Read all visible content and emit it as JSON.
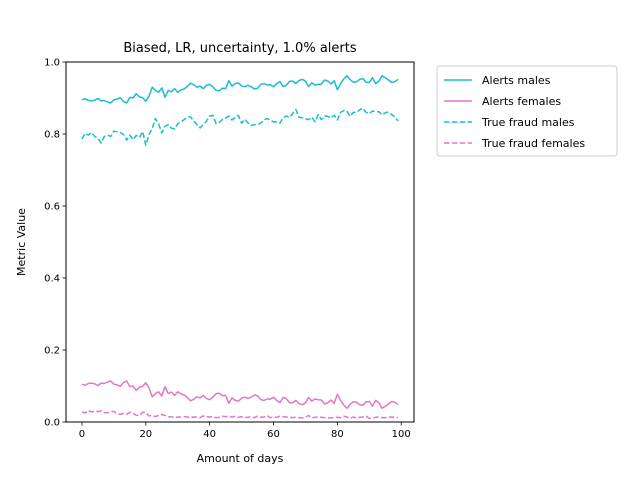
{
  "chart_data": {
    "type": "line",
    "title": "Biased, LR, uncertainty, 1.0% alerts",
    "xlabel": "Amount of days",
    "ylabel": "Metric Value",
    "xlim": [
      -5,
      104
    ],
    "ylim": [
      0.0,
      1.0
    ],
    "xticks": [
      0,
      20,
      40,
      60,
      80,
      100
    ],
    "yticks": [
      0.0,
      0.2,
      0.4,
      0.6,
      0.8,
      1.0
    ],
    "xtick_labels": [
      "0",
      "20",
      "40",
      "60",
      "80",
      "100"
    ],
    "ytick_labels": [
      "0.0",
      "0.2",
      "0.4",
      "0.6",
      "0.8",
      "1.0"
    ],
    "grid": false,
    "legend_position": "outside-top-right",
    "x": [
      0,
      1,
      2,
      3,
      4,
      5,
      6,
      7,
      8,
      9,
      10,
      11,
      12,
      13,
      14,
      15,
      16,
      17,
      18,
      19,
      20,
      21,
      22,
      23,
      24,
      25,
      26,
      27,
      28,
      29,
      30,
      31,
      32,
      33,
      34,
      35,
      36,
      37,
      38,
      39,
      40,
      41,
      42,
      43,
      44,
      45,
      46,
      47,
      48,
      49,
      50,
      51,
      52,
      53,
      54,
      55,
      56,
      57,
      58,
      59,
      60,
      61,
      62,
      63,
      64,
      65,
      66,
      67,
      68,
      69,
      70,
      71,
      72,
      73,
      74,
      75,
      76,
      77,
      78,
      79,
      80,
      81,
      82,
      83,
      84,
      85,
      86,
      87,
      88,
      89,
      90,
      91,
      92,
      93,
      94,
      95,
      96,
      97,
      98,
      99
    ],
    "series": [
      {
        "name": "Alerts males",
        "color": "#17becf",
        "dash": "solid",
        "values": [
          0.895,
          0.898,
          0.893,
          0.892,
          0.894,
          0.899,
          0.892,
          0.893,
          0.889,
          0.886,
          0.895,
          0.897,
          0.901,
          0.89,
          0.886,
          0.902,
          0.9,
          0.912,
          0.903,
          0.901,
          0.891,
          0.905,
          0.93,
          0.921,
          0.916,
          0.928,
          0.902,
          0.921,
          0.917,
          0.926,
          0.916,
          0.922,
          0.925,
          0.932,
          0.941,
          0.937,
          0.93,
          0.933,
          0.926,
          0.935,
          0.938,
          0.931,
          0.921,
          0.92,
          0.927,
          0.926,
          0.948,
          0.933,
          0.94,
          0.942,
          0.934,
          0.931,
          0.935,
          0.931,
          0.925,
          0.927,
          0.938,
          0.94,
          0.936,
          0.937,
          0.931,
          0.94,
          0.946,
          0.932,
          0.935,
          0.946,
          0.947,
          0.94,
          0.949,
          0.952,
          0.947,
          0.932,
          0.942,
          0.936,
          0.938,
          0.939,
          0.95,
          0.947,
          0.939,
          0.948,
          0.923,
          0.94,
          0.953,
          0.962,
          0.951,
          0.944,
          0.945,
          0.952,
          0.954,
          0.944,
          0.943,
          0.956,
          0.94,
          0.947,
          0.962,
          0.956,
          0.95,
          0.943,
          0.945,
          0.952
        ]
      },
      {
        "name": "Alerts females",
        "color": "#e377c2",
        "dash": "solid",
        "values": [
          0.105,
          0.102,
          0.107,
          0.108,
          0.106,
          0.101,
          0.108,
          0.107,
          0.111,
          0.114,
          0.105,
          0.103,
          0.099,
          0.11,
          0.114,
          0.098,
          0.1,
          0.088,
          0.097,
          0.099,
          0.109,
          0.095,
          0.07,
          0.079,
          0.084,
          0.072,
          0.098,
          0.079,
          0.083,
          0.074,
          0.084,
          0.078,
          0.075,
          0.068,
          0.059,
          0.063,
          0.07,
          0.067,
          0.074,
          0.065,
          0.062,
          0.069,
          0.079,
          0.08,
          0.073,
          0.074,
          0.052,
          0.067,
          0.06,
          0.058,
          0.066,
          0.069,
          0.065,
          0.069,
          0.075,
          0.073,
          0.062,
          0.06,
          0.064,
          0.063,
          0.069,
          0.06,
          0.054,
          0.068,
          0.065,
          0.054,
          0.053,
          0.06,
          0.051,
          0.048,
          0.053,
          0.068,
          0.058,
          0.064,
          0.062,
          0.061,
          0.05,
          0.053,
          0.061,
          0.052,
          0.077,
          0.06,
          0.047,
          0.038,
          0.049,
          0.056,
          0.055,
          0.048,
          0.046,
          0.056,
          0.057,
          0.044,
          0.06,
          0.053,
          0.038,
          0.044,
          0.05,
          0.057,
          0.055,
          0.048
        ]
      },
      {
        "name": "True fraud males",
        "color": "#17becf",
        "dash": "dashed",
        "values": [
          0.786,
          0.802,
          0.797,
          0.804,
          0.793,
          0.788,
          0.775,
          0.793,
          0.797,
          0.793,
          0.808,
          0.806,
          0.804,
          0.799,
          0.783,
          0.797,
          0.784,
          0.796,
          0.79,
          0.807,
          0.769,
          0.798,
          0.815,
          0.843,
          0.828,
          0.803,
          0.821,
          0.826,
          0.816,
          0.814,
          0.828,
          0.833,
          0.84,
          0.846,
          0.848,
          0.836,
          0.826,
          0.817,
          0.826,
          0.836,
          0.85,
          0.852,
          0.829,
          0.832,
          0.84,
          0.844,
          0.85,
          0.839,
          0.846,
          0.852,
          0.83,
          0.841,
          0.831,
          0.823,
          0.826,
          0.826,
          0.83,
          0.838,
          0.843,
          0.838,
          0.834,
          0.833,
          0.83,
          0.845,
          0.85,
          0.846,
          0.857,
          0.868,
          0.846,
          0.845,
          0.842,
          0.84,
          0.847,
          0.834,
          0.854,
          0.84,
          0.85,
          0.849,
          0.845,
          0.852,
          0.839,
          0.86,
          0.865,
          0.863,
          0.849,
          0.86,
          0.86,
          0.867,
          0.872,
          0.86,
          0.857,
          0.864,
          0.862,
          0.862,
          0.853,
          0.859,
          0.861,
          0.854,
          0.848,
          0.836
        ]
      },
      {
        "name": "True fraud females",
        "color": "#e377c2",
        "dash": "dashed",
        "values": [
          0.028,
          0.025,
          0.032,
          0.028,
          0.03,
          0.029,
          0.031,
          0.026,
          0.026,
          0.027,
          0.03,
          0.023,
          0.021,
          0.024,
          0.022,
          0.027,
          0.024,
          0.019,
          0.018,
          0.027,
          0.027,
          0.017,
          0.018,
          0.015,
          0.018,
          0.021,
          0.018,
          0.014,
          0.015,
          0.012,
          0.014,
          0.014,
          0.015,
          0.014,
          0.012,
          0.014,
          0.013,
          0.012,
          0.017,
          0.015,
          0.014,
          0.015,
          0.012,
          0.013,
          0.016,
          0.015,
          0.016,
          0.014,
          0.016,
          0.013,
          0.015,
          0.012,
          0.013,
          0.015,
          0.012,
          0.016,
          0.013,
          0.014,
          0.018,
          0.012,
          0.014,
          0.013,
          0.016,
          0.015,
          0.014,
          0.013,
          0.012,
          0.014,
          0.012,
          0.011,
          0.013,
          0.018,
          0.011,
          0.013,
          0.014,
          0.013,
          0.012,
          0.011,
          0.012,
          0.012,
          0.013,
          0.012,
          0.016,
          0.014,
          0.01,
          0.014,
          0.011,
          0.013,
          0.014,
          0.016,
          0.01,
          0.011,
          0.013,
          0.014,
          0.012,
          0.012,
          0.013,
          0.014,
          0.013,
          0.012
        ]
      }
    ]
  }
}
